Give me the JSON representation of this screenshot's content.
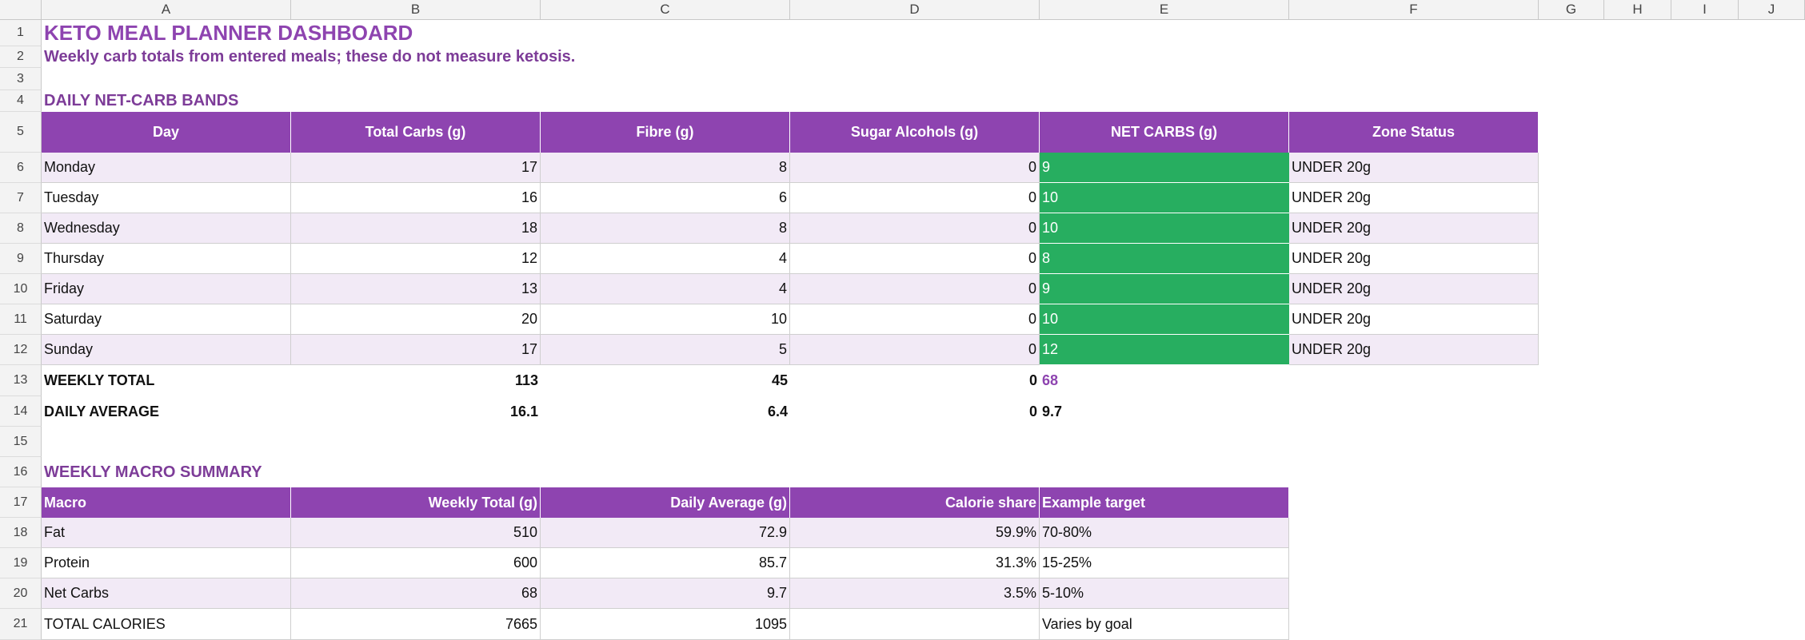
{
  "columns": [
    "A",
    "B",
    "C",
    "D",
    "E",
    "F",
    "G",
    "H",
    "I",
    "J"
  ],
  "rows": [
    "1",
    "2",
    "3",
    "4",
    "5",
    "6",
    "7",
    "8",
    "9",
    "10",
    "11",
    "12",
    "13",
    "14",
    "15",
    "16",
    "17",
    "18",
    "19",
    "20",
    "21"
  ],
  "title": "KETO MEAL PLANNER DASHBOARD",
  "subtitle": "Weekly carb totals from entered meals; these do not measure ketosis.",
  "daily": {
    "heading": "DAILY NET-CARB BANDS",
    "headers": [
      "Day",
      "Total Carbs (g)",
      "Fibre (g)",
      "Sugar Alcohols (g)",
      "NET CARBS (g)",
      "Zone Status"
    ],
    "rows": [
      {
        "day": "Monday",
        "total": "17",
        "fibre": "8",
        "sugar": "0",
        "net": "9",
        "zone": "UNDER 20g"
      },
      {
        "day": "Tuesday",
        "total": "16",
        "fibre": "6",
        "sugar": "0",
        "net": "10",
        "zone": "UNDER 20g"
      },
      {
        "day": "Wednesday",
        "total": "18",
        "fibre": "8",
        "sugar": "0",
        "net": "10",
        "zone": "UNDER 20g"
      },
      {
        "day": "Thursday",
        "total": "12",
        "fibre": "4",
        "sugar": "0",
        "net": "8",
        "zone": "UNDER 20g"
      },
      {
        "day": "Friday",
        "total": "13",
        "fibre": "4",
        "sugar": "0",
        "net": "9",
        "zone": "UNDER 20g"
      },
      {
        "day": "Saturday",
        "total": "20",
        "fibre": "10",
        "sugar": "0",
        "net": "10",
        "zone": "UNDER 20g"
      },
      {
        "day": "Sunday",
        "total": "17",
        "fibre": "5",
        "sugar": "0",
        "net": "12",
        "zone": "UNDER 20g"
      }
    ],
    "weekly_total": {
      "label": "WEEKLY TOTAL",
      "total": "113",
      "fibre": "45",
      "sugar": "0",
      "net": "68"
    },
    "daily_average": {
      "label": "DAILY AVERAGE",
      "total": "16.1",
      "fibre": "6.4",
      "sugar": "0",
      "net": "9.7"
    }
  },
  "macro": {
    "heading": "WEEKLY MACRO SUMMARY",
    "headers": [
      "Macro",
      "Weekly Total (g)",
      "Daily Average (g)",
      "Calorie share",
      "Example target"
    ],
    "rows": [
      {
        "macro": "Fat",
        "weekly": "510",
        "daily": "72.9",
        "share": "59.9%",
        "target": "70-80%"
      },
      {
        "macro": "Protein",
        "weekly": "600",
        "daily": "85.7",
        "share": "31.3%",
        "target": "15-25%"
      },
      {
        "macro": "Net Carbs",
        "weekly": "68",
        "daily": "9.7",
        "share": "3.5%",
        "target": "5-10%"
      }
    ],
    "total": {
      "label": "TOTAL CALORIES",
      "weekly": "7665",
      "daily": "1095",
      "share": "",
      "target": "Varies by goal"
    }
  },
  "colors": {
    "accent": "#8e44b0",
    "band": "#f2eaf6",
    "green": "#27ae60"
  }
}
